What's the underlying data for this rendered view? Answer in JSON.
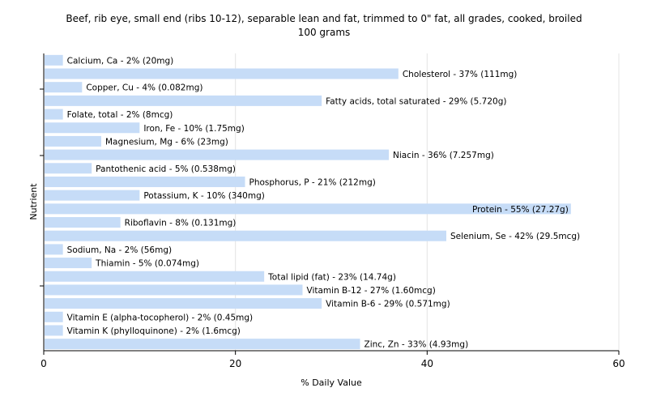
{
  "chart_data": {
    "type": "bar",
    "orientation": "horizontal",
    "title": "Beef, rib eye, small end (ribs 10-12), separable lean and fat, trimmed to 0\" fat, all grades, cooked, broiled",
    "subtitle": "100 grams",
    "xlabel": "% Daily Value",
    "ylabel": "Nutrient",
    "xlim": [
      0,
      60
    ],
    "xticks": [
      0,
      20,
      40,
      60
    ],
    "grid": true,
    "bar_color": "#c6dcf7",
    "categories": [
      "Calcium, Ca",
      "Cholesterol",
      "Copper, Cu",
      "Fatty acids, total saturated",
      "Folate, total",
      "Iron, Fe",
      "Magnesium, Mg",
      "Niacin",
      "Pantothenic acid",
      "Phosphorus, P",
      "Potassium, K",
      "Protein",
      "Riboflavin",
      "Selenium, Se",
      "Sodium, Na",
      "Thiamin",
      "Total lipid (fat)",
      "Vitamin B-12",
      "Vitamin B-6",
      "Vitamin E (alpha-tocopherol)",
      "Vitamin K (phylloquinone)",
      "Zinc, Zn"
    ],
    "values": [
      2,
      37,
      4,
      29,
      2,
      10,
      6,
      36,
      5,
      21,
      10,
      55,
      8,
      42,
      2,
      5,
      23,
      27,
      29,
      2,
      2,
      33
    ],
    "labels": [
      "Calcium, Ca - 2% (20mg)",
      "Cholesterol - 37% (111mg)",
      "Copper, Cu - 4% (0.082mg)",
      "Fatty acids, total saturated - 29% (5.720g)",
      "Folate, total - 2% (8mcg)",
      "Iron, Fe - 10% (1.75mg)",
      "Magnesium, Mg - 6% (23mg)",
      "Niacin - 36% (7.257mg)",
      "Pantothenic acid - 5% (0.538mg)",
      "Phosphorus, P - 21% (212mg)",
      "Potassium, K - 10% (340mg)",
      "Protein - 55% (27.27g)",
      "Riboflavin - 8% (0.131mg)",
      "Selenium, Se - 42% (29.5mcg)",
      "Sodium, Na - 2% (56mg)",
      "Thiamin - 5% (0.074mg)",
      "Total lipid (fat) - 23% (14.74g)",
      "Vitamin B-12 - 27% (1.60mcg)",
      "Vitamin B-6 - 29% (0.571mg)",
      "Vitamin E (alpha-tocopherol) - 2% (0.45mg)",
      "Vitamin K (phylloquinone) - 2% (1.6mcg)",
      "Zinc, Zn - 33% (4.93mg)"
    ]
  }
}
